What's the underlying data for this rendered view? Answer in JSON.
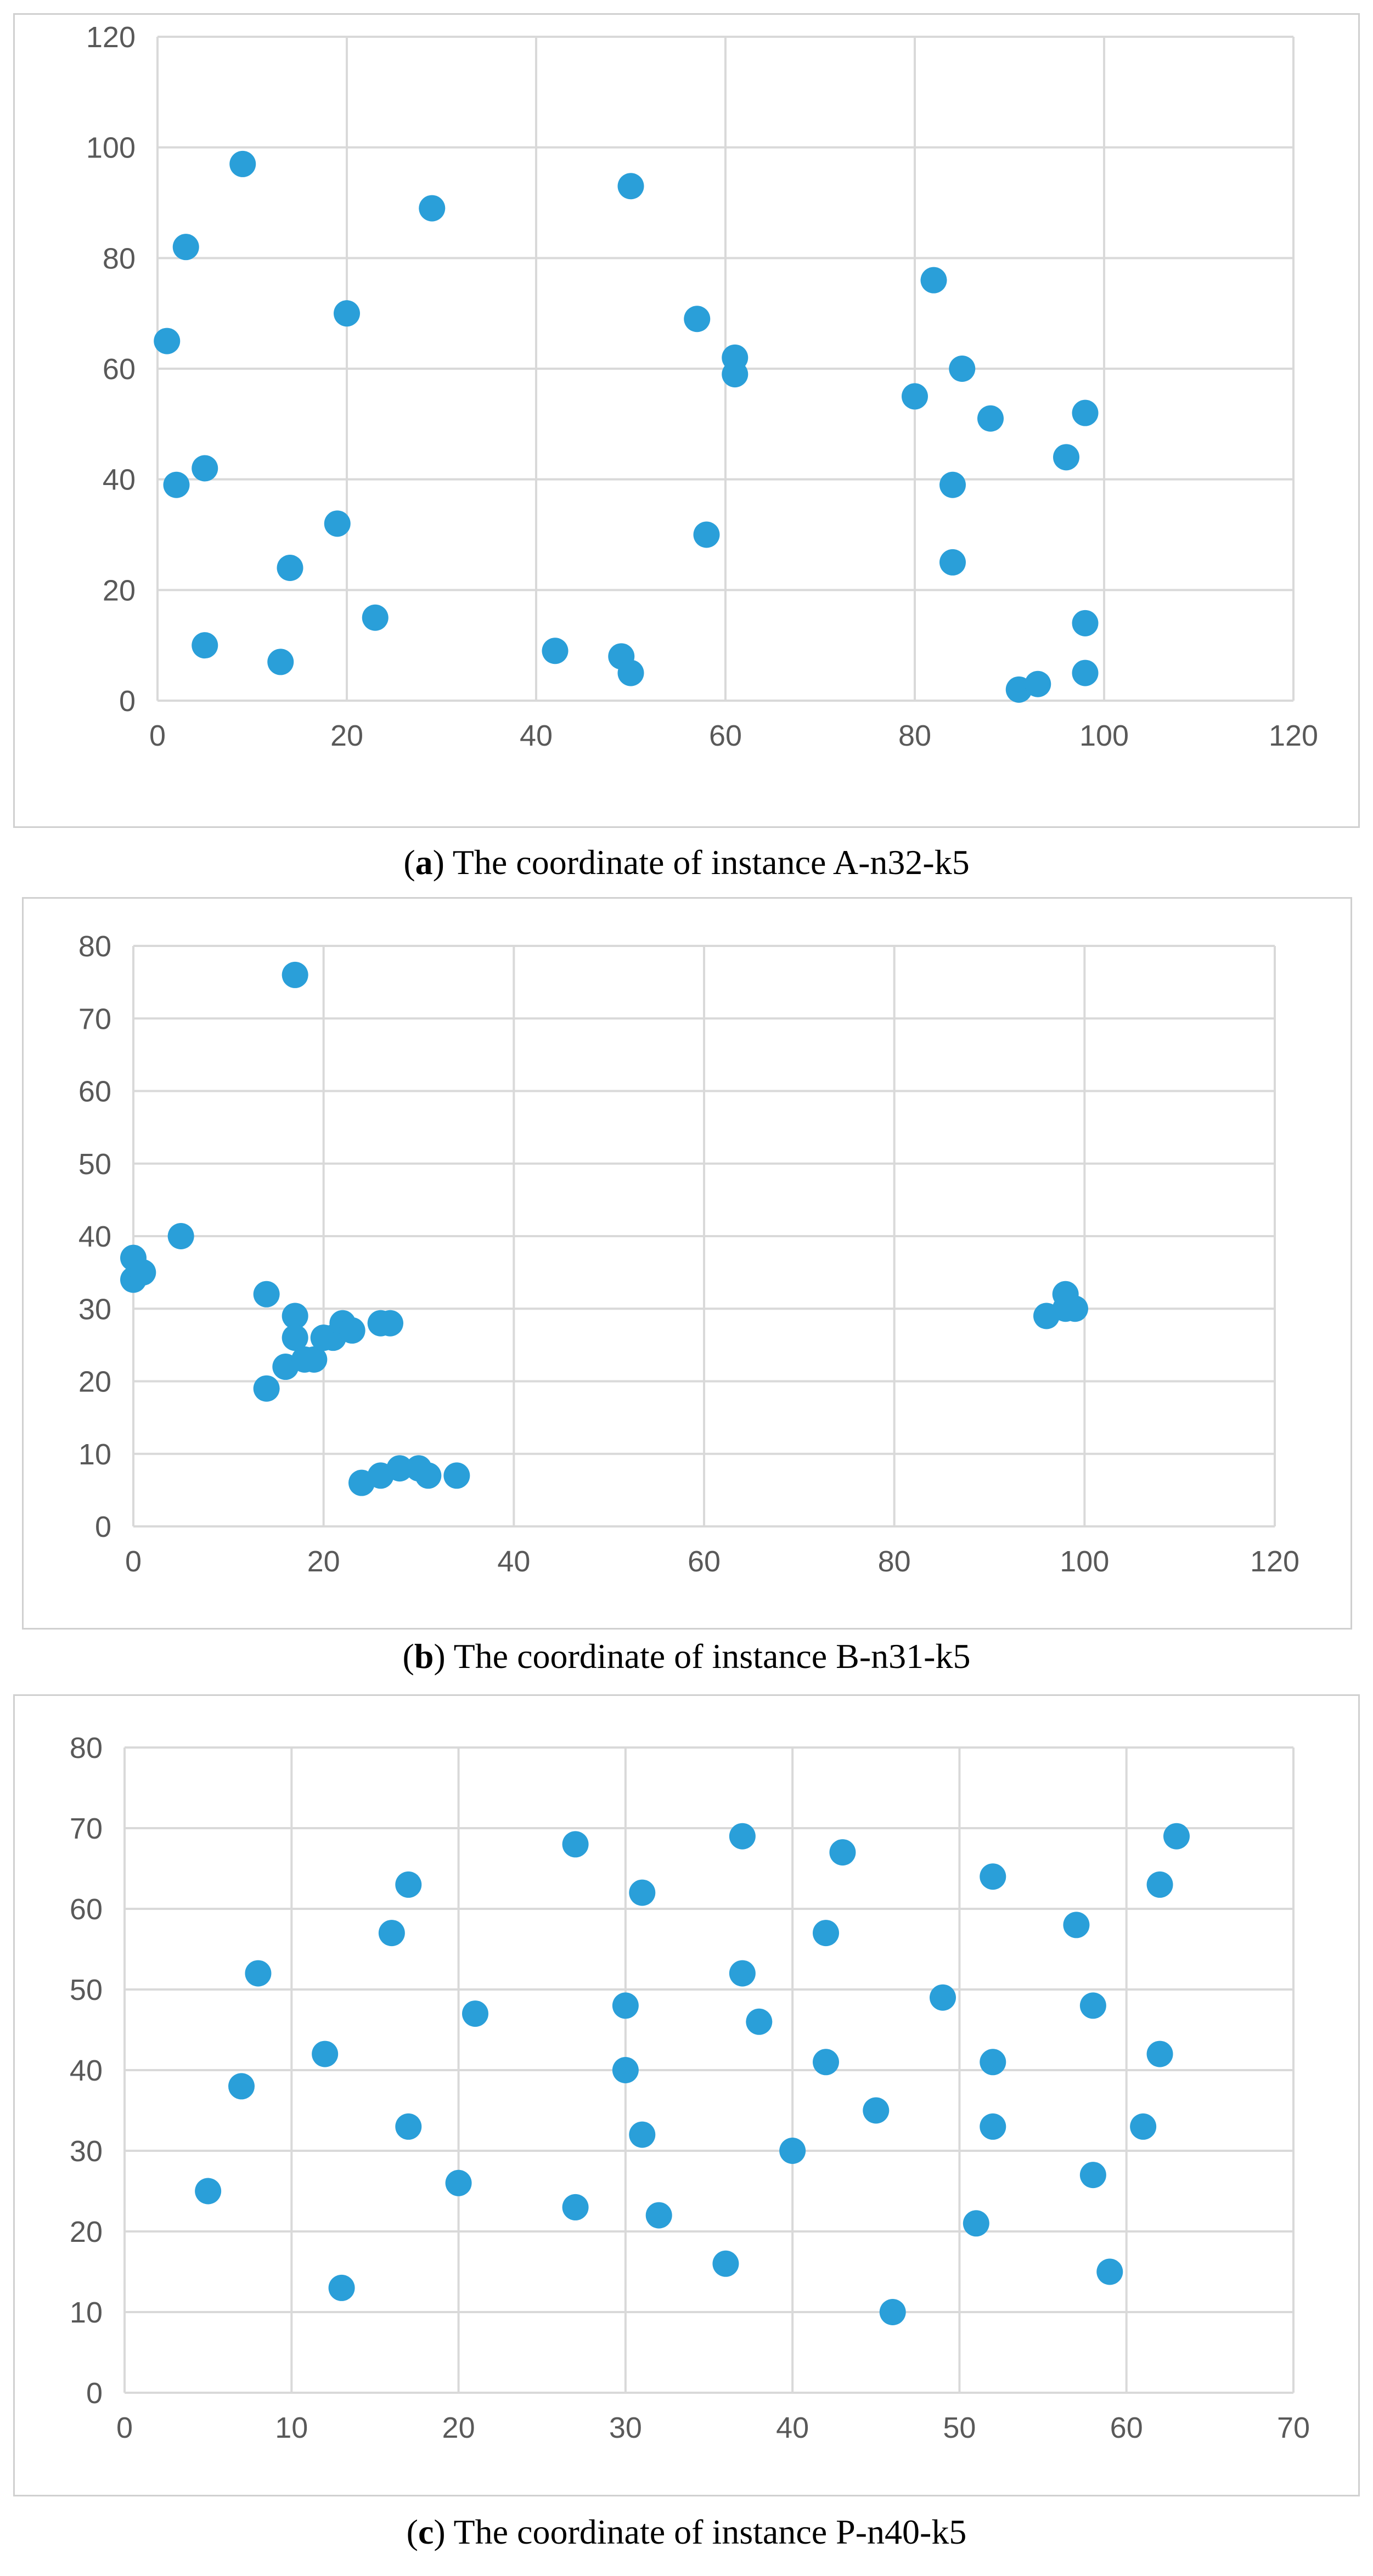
{
  "chart_data": [
    {
      "type": "scatter",
      "label": "a",
      "title": "The coordinate of instance A-n32-k5",
      "xlim": [
        0,
        120
      ],
      "ylim": [
        0,
        120
      ],
      "xticks": [
        0,
        20,
        40,
        60,
        80,
        100,
        120
      ],
      "yticks": [
        0,
        20,
        40,
        60,
        80,
        100,
        120
      ],
      "grid": true,
      "color": "#2a9fd9",
      "points": [
        [
          1,
          65
        ],
        [
          2,
          39
        ],
        [
          3,
          82
        ],
        [
          5,
          42
        ],
        [
          5,
          10
        ],
        [
          9,
          97
        ],
        [
          13,
          7
        ],
        [
          14,
          24
        ],
        [
          19,
          32
        ],
        [
          20,
          70
        ],
        [
          23,
          15
        ],
        [
          29,
          89
        ],
        [
          42,
          9
        ],
        [
          49,
          8
        ],
        [
          50,
          5
        ],
        [
          50,
          93
        ],
        [
          57,
          69
        ],
        [
          58,
          30
        ],
        [
          61,
          62
        ],
        [
          61,
          59
        ],
        [
          80,
          55
        ],
        [
          82,
          76
        ],
        [
          84,
          39
        ],
        [
          84,
          25
        ],
        [
          85,
          60
        ],
        [
          88,
          51
        ],
        [
          91,
          2
        ],
        [
          93,
          3
        ],
        [
          96,
          44
        ],
        [
          98,
          52
        ],
        [
          98,
          14
        ],
        [
          98,
          5
        ]
      ]
    },
    {
      "type": "scatter",
      "label": "b",
      "title": "The coordinate of instance B-n31-k5",
      "xlim": [
        0,
        120
      ],
      "ylim": [
        0,
        80
      ],
      "xticks": [
        0,
        20,
        40,
        60,
        80,
        100,
        120
      ],
      "yticks": [
        0,
        10,
        20,
        30,
        40,
        50,
        60,
        70,
        80
      ],
      "grid": true,
      "color": "#2a9fd9",
      "points": [
        [
          0,
          37
        ],
        [
          0,
          34
        ],
        [
          1,
          35
        ],
        [
          5,
          40
        ],
        [
          14,
          32
        ],
        [
          14,
          19
        ],
        [
          16,
          22
        ],
        [
          17,
          76
        ],
        [
          17,
          29
        ],
        [
          17,
          26
        ],
        [
          18,
          23
        ],
        [
          19,
          23
        ],
        [
          20,
          26
        ],
        [
          21,
          26
        ],
        [
          22,
          28
        ],
        [
          23,
          27
        ],
        [
          26,
          28
        ],
        [
          27,
          28
        ],
        [
          24,
          6
        ],
        [
          26,
          7
        ],
        [
          28,
          8
        ],
        [
          30,
          8
        ],
        [
          31,
          7
        ],
        [
          34,
          7
        ],
        [
          96,
          29
        ],
        [
          98,
          32
        ],
        [
          98,
          30
        ],
        [
          99,
          30
        ]
      ]
    },
    {
      "type": "scatter",
      "label": "c",
      "title": "The coordinate of instance P-n40-k5",
      "xlim": [
        0,
        70
      ],
      "ylim": [
        0,
        80
      ],
      "xticks": [
        0,
        10,
        20,
        30,
        40,
        50,
        60,
        70
      ],
      "yticks": [
        0,
        10,
        20,
        30,
        40,
        50,
        60,
        70,
        80
      ],
      "grid": true,
      "color": "#2a9fd9",
      "points": [
        [
          5,
          25
        ],
        [
          7,
          38
        ],
        [
          8,
          52
        ],
        [
          12,
          42
        ],
        [
          13,
          13
        ],
        [
          16,
          57
        ],
        [
          17,
          63
        ],
        [
          17,
          33
        ],
        [
          20,
          26
        ],
        [
          21,
          47
        ],
        [
          27,
          68
        ],
        [
          27,
          23
        ],
        [
          30,
          48
        ],
        [
          30,
          40
        ],
        [
          31,
          62
        ],
        [
          31,
          32
        ],
        [
          32,
          22
        ],
        [
          36,
          16
        ],
        [
          37,
          69
        ],
        [
          37,
          52
        ],
        [
          38,
          46
        ],
        [
          40,
          30
        ],
        [
          42,
          57
        ],
        [
          42,
          41
        ],
        [
          43,
          67
        ],
        [
          45,
          35
        ],
        [
          46,
          10
        ],
        [
          49,
          49
        ],
        [
          51,
          21
        ],
        [
          52,
          64
        ],
        [
          52,
          41
        ],
        [
          52,
          33
        ],
        [
          57,
          58
        ],
        [
          58,
          48
        ],
        [
          58,
          27
        ],
        [
          59,
          15
        ],
        [
          61,
          33
        ],
        [
          62,
          63
        ],
        [
          62,
          42
        ],
        [
          63,
          69
        ]
      ]
    }
  ]
}
